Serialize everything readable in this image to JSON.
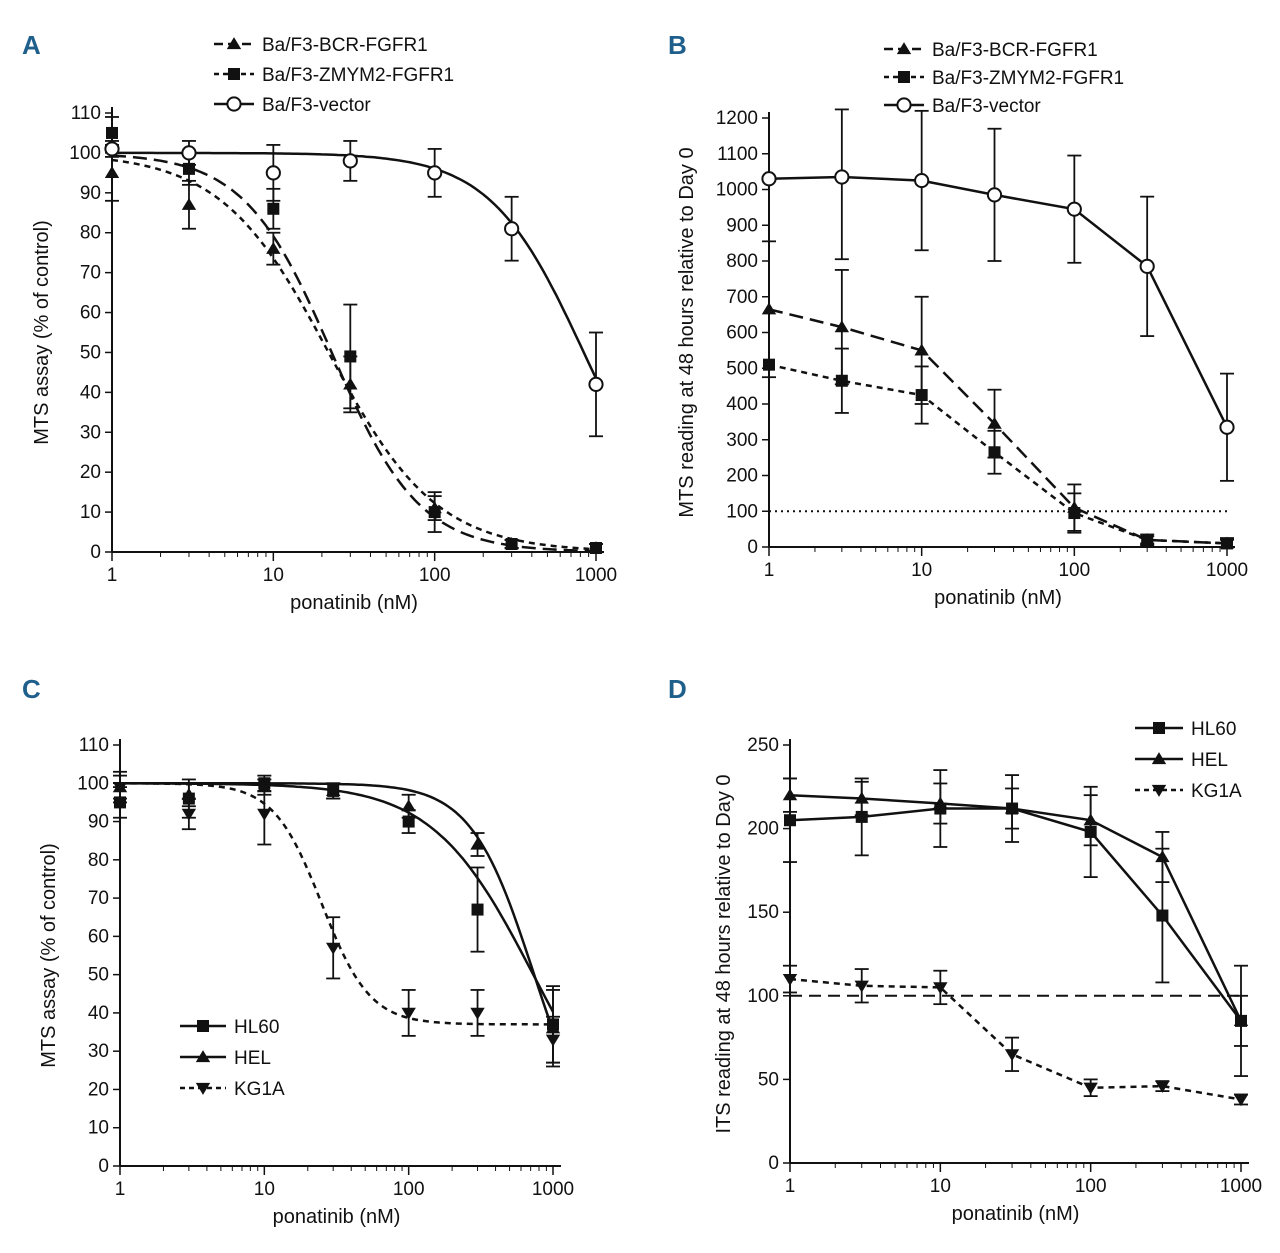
{
  "colors": {
    "panel_label": "#1f5f8b",
    "ink": "#111111"
  },
  "chart_data": [
    {
      "panel": "A",
      "type": "line",
      "xscale": "log",
      "xlabel": "ponatinib (nM)",
      "ylabel": "MTS assay (% of control)",
      "xlim": [
        1,
        1000
      ],
      "ylim": [
        0,
        110
      ],
      "xticks": [
        1,
        10,
        100,
        1000
      ],
      "xtick_labels": [
        "1",
        "10",
        "100",
        "1000"
      ],
      "yticks": [
        0,
        10,
        20,
        30,
        40,
        50,
        60,
        70,
        80,
        90,
        100,
        110
      ],
      "legend_position": "top",
      "series": [
        {
          "name": "Ba/F3-BCR-FGFR1",
          "marker": "triangle",
          "dash": "long",
          "x": [
            1,
            3,
            10,
            30,
            100,
            300,
            1000
          ],
          "y": [
            95,
            87,
            76,
            42,
            11,
            2,
            1
          ],
          "err": [
            7,
            6,
            4,
            7,
            3,
            1,
            1
          ],
          "fit": {
            "top": 100,
            "bottom": 0,
            "ic50": 23,
            "hill": 1.6
          }
        },
        {
          "name": "Ba/F3-ZMYM2-FGFR1",
          "marker": "square",
          "dash": "short",
          "x": [
            1,
            3,
            10,
            30,
            100,
            300,
            1000
          ],
          "y": [
            105,
            96,
            86,
            49,
            10,
            2,
            1
          ],
          "err": [
            4,
            4,
            5,
            13,
            5,
            1,
            1
          ],
          "fit": {
            "top": 100,
            "bottom": 0,
            "ic50": 22,
            "hill": 1.3
          }
        },
        {
          "name": "Ba/F3-vector",
          "marker": "circle",
          "dash": "solid",
          "x": [
            1,
            3,
            10,
            30,
            100,
            300,
            1000
          ],
          "y": [
            101,
            100,
            95,
            98,
            95,
            81,
            42
          ],
          "err": [
            2,
            3,
            7,
            5,
            6,
            8,
            13
          ],
          "fit": {
            "top": 100,
            "bottom": 0,
            "ic50": 840,
            "hill": 1.5
          }
        }
      ]
    },
    {
      "panel": "B",
      "type": "line",
      "xscale": "log",
      "xlabel": "ponatinib (nM)",
      "ylabel": "MTS reading at 48 hours relative to Day 0",
      "xlim": [
        1,
        1000
      ],
      "ylim": [
        0,
        1200
      ],
      "xticks": [
        1,
        10,
        100,
        1000
      ],
      "xtick_labels": [
        "1",
        "10",
        "100",
        "1000"
      ],
      "yticks": [
        0,
        100,
        200,
        300,
        400,
        500,
        600,
        700,
        800,
        900,
        1000,
        1100,
        1200
      ],
      "reference_line": 100,
      "legend_position": "top",
      "series": [
        {
          "name": "Ba/F3-BCR-FGFR1",
          "marker": "triangle",
          "dash": "long",
          "x": [
            1,
            3,
            10,
            30,
            100,
            300,
            1000
          ],
          "y": [
            665,
            615,
            550,
            345,
            110,
            20,
            10
          ],
          "err": [
            190,
            160,
            150,
            95,
            65,
            15,
            15
          ]
        },
        {
          "name": "Ba/F3-ZMYM2-FGFR1",
          "marker": "square",
          "dash": "short",
          "x": [
            1,
            3,
            10,
            30,
            100,
            300,
            1000
          ],
          "y": [
            510,
            465,
            425,
            265,
            95,
            20,
            10
          ],
          "err": [
            0,
            90,
            80,
            60,
            55,
            10,
            10
          ]
        },
        {
          "name": "Ba/F3-vector",
          "marker": "circle",
          "dash": "solid",
          "x": [
            1,
            3,
            10,
            30,
            100,
            300,
            1000
          ],
          "y": [
            1030,
            1035,
            1025,
            985,
            945,
            785,
            335
          ],
          "err": [
            0,
            230,
            195,
            185,
            150,
            195,
            150
          ]
        }
      ]
    },
    {
      "panel": "C",
      "type": "line",
      "xscale": "log",
      "xlabel": "ponatinib (nM)",
      "ylabel": "MTS assay (% of control)",
      "xlim": [
        1,
        1000
      ],
      "ylim": [
        0,
        110
      ],
      "xticks": [
        1,
        10,
        100,
        1000
      ],
      "xtick_labels": [
        "1",
        "10",
        "100",
        "1000"
      ],
      "yticks": [
        0,
        10,
        20,
        30,
        40,
        50,
        60,
        70,
        80,
        90,
        100,
        110
      ],
      "legend_position": "bottom-left",
      "series": [
        {
          "name": "HL60",
          "marker": "square",
          "dash": "solid",
          "x": [
            1,
            3,
            10,
            30,
            100,
            300,
            1000
          ],
          "y": [
            95,
            96,
            100,
            98,
            90,
            67,
            37
          ],
          "err": [
            4,
            5,
            2,
            2,
            3,
            11,
            10
          ],
          "fit": {
            "top": 100,
            "bottom": 0,
            "ic50": 730,
            "hill": 1.25
          }
        },
        {
          "name": "HEL",
          "marker": "triangle",
          "dash": "solid",
          "x": [
            1,
            3,
            10,
            30,
            100,
            300,
            1000
          ],
          "y": [
            99,
            97,
            99,
            98,
            94,
            84,
            36
          ],
          "err": [
            4,
            3,
            2,
            2,
            3,
            3,
            10
          ],
          "fit": {
            "top": 100,
            "bottom": 0,
            "ic50": 740,
            "hill": 2.0
          }
        },
        {
          "name": "KG1A",
          "marker": "inverted-triangle",
          "dash": "short",
          "x": [
            1,
            3,
            10,
            30,
            100,
            300,
            1000
          ],
          "y": [
            99,
            92,
            92,
            57,
            40,
            40,
            33
          ],
          "err": [
            3,
            4,
            8,
            8,
            6,
            6,
            6
          ],
          "fit": {
            "top": 100,
            "bottom": 37,
            "ic50": 25,
            "hill": 2.6
          }
        }
      ]
    },
    {
      "panel": "D",
      "type": "line",
      "xscale": "log",
      "xlabel": "ponatinib (nM)",
      "ylabel": "ITS reading at 48 hours relative to Day 0",
      "xlim": [
        1,
        1000
      ],
      "ylim": [
        0,
        250
      ],
      "xticks": [
        1,
        10,
        100,
        1000
      ],
      "xtick_labels": [
        "1",
        "10",
        "100",
        "1000"
      ],
      "yticks": [
        0,
        50,
        100,
        150,
        200,
        250
      ],
      "reference_line": 100,
      "legend_position": "top-right",
      "series": [
        {
          "name": "HL60",
          "marker": "square",
          "dash": "solid",
          "x": [
            1,
            3,
            10,
            30,
            100,
            300,
            1000
          ],
          "y": [
            205,
            207,
            212,
            212,
            198,
            148,
            85
          ],
          "err": [
            25,
            23,
            23,
            20,
            27,
            40,
            33
          ]
        },
        {
          "name": "HEL",
          "marker": "triangle",
          "dash": "solid",
          "x": [
            1,
            3,
            10,
            30,
            100,
            300,
            1000
          ],
          "y": [
            220,
            218,
            215,
            212,
            205,
            183,
            85
          ],
          "err": [
            10,
            10,
            12,
            12,
            15,
            15,
            15
          ]
        },
        {
          "name": "KG1A",
          "marker": "inverted-triangle",
          "dash": "short",
          "x": [
            1,
            3,
            10,
            30,
            100,
            300,
            1000
          ],
          "y": [
            110,
            106,
            105,
            65,
            45,
            46,
            38
          ],
          "err": [
            8,
            10,
            10,
            10,
            5,
            3,
            3
          ]
        }
      ]
    }
  ]
}
